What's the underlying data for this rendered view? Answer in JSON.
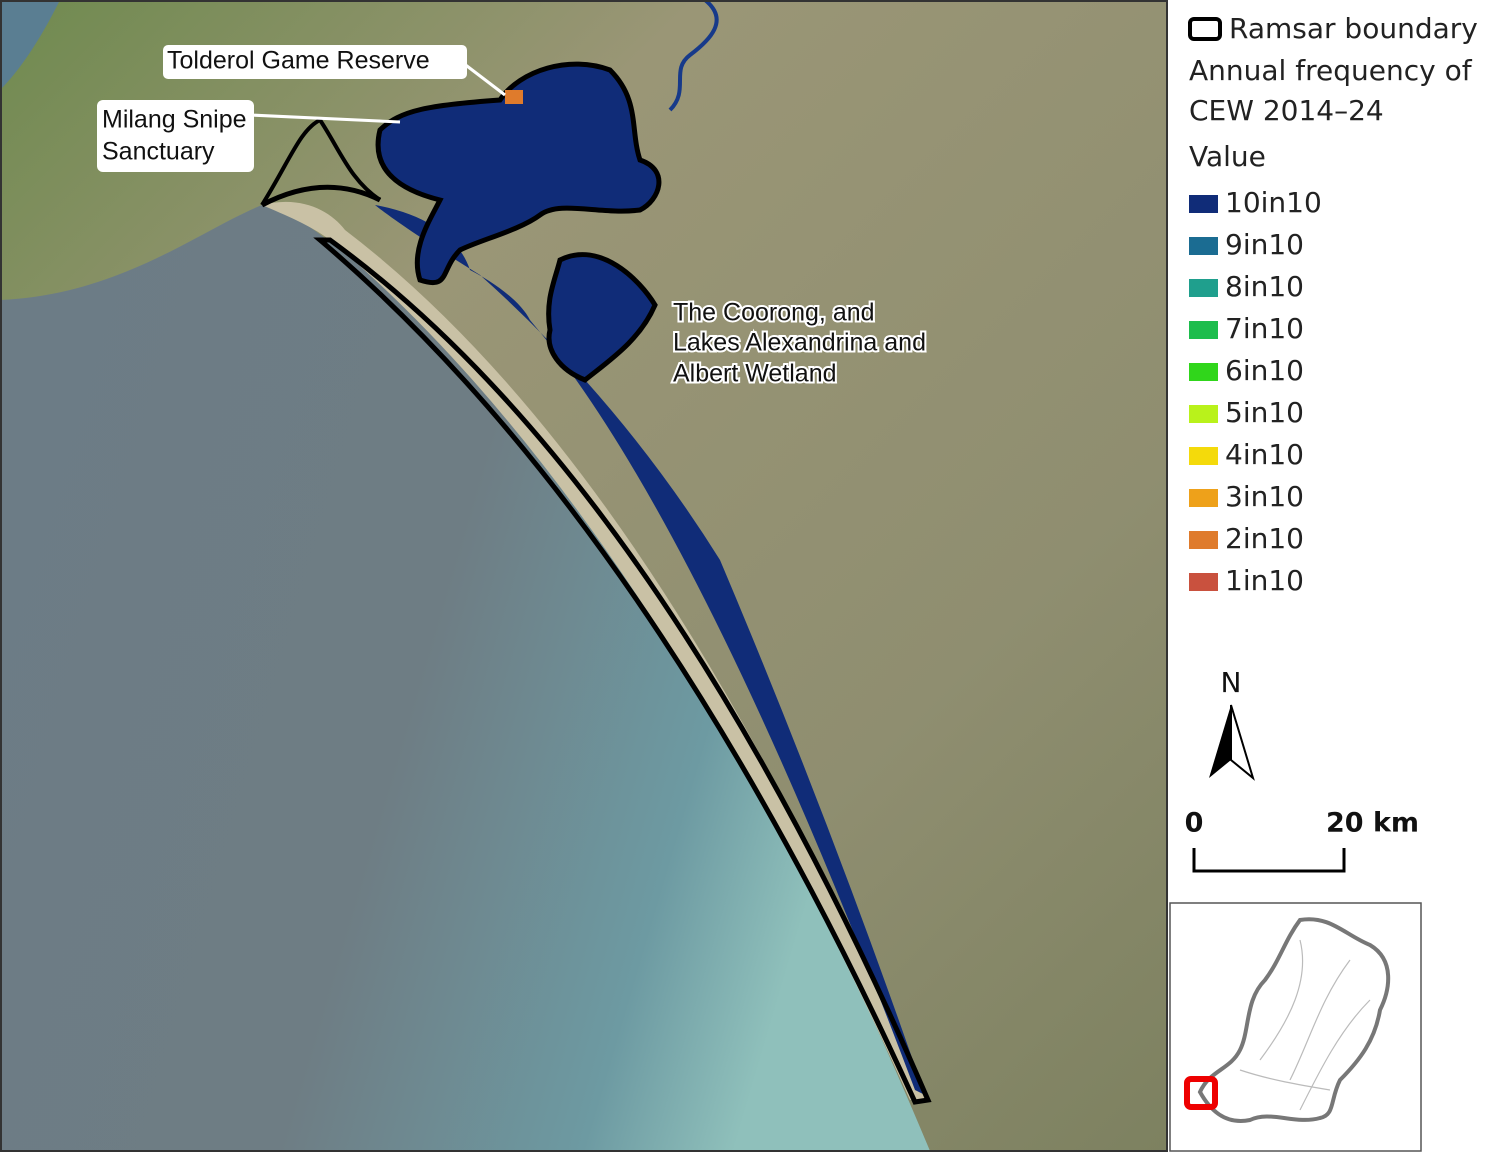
{
  "map": {
    "places": [
      {
        "lines": [
          "Tolderol Game Reserve"
        ]
      },
      {
        "lines": [
          "Milang Snipe",
          "Sanctuary"
        ]
      },
      {
        "lines": [
          "The Coorong, and",
          "Lakes Alexandrina and",
          "Albert Wetland"
        ]
      }
    ]
  },
  "legend": {
    "boundary_label": "Ramsar boundary",
    "title_lines": [
      "Annual frequency of",
      "CEW 2014–24"
    ],
    "subtitle": "Value",
    "items": [
      {
        "label": "10in10",
        "color": "#102c78"
      },
      {
        "label": "9in10",
        "color": "#1b6c92"
      },
      {
        "label": "8in10",
        "color": "#1f9f8d"
      },
      {
        "label": "7in10",
        "color": "#1dbd4d"
      },
      {
        "label": "6in10",
        "color": "#30d61b"
      },
      {
        "label": "5in10",
        "color": "#b9f21b"
      },
      {
        "label": "4in10",
        "color": "#f4da0b"
      },
      {
        "label": "3in10",
        "color": "#eea11a"
      },
      {
        "label": "2in10",
        "color": "#df7b2c"
      },
      {
        "label": "1in10",
        "color": "#c9513e"
      }
    ]
  },
  "north_arrow": {
    "label": "N"
  },
  "scale_bar": {
    "start": "0",
    "end": "20 km"
  }
}
